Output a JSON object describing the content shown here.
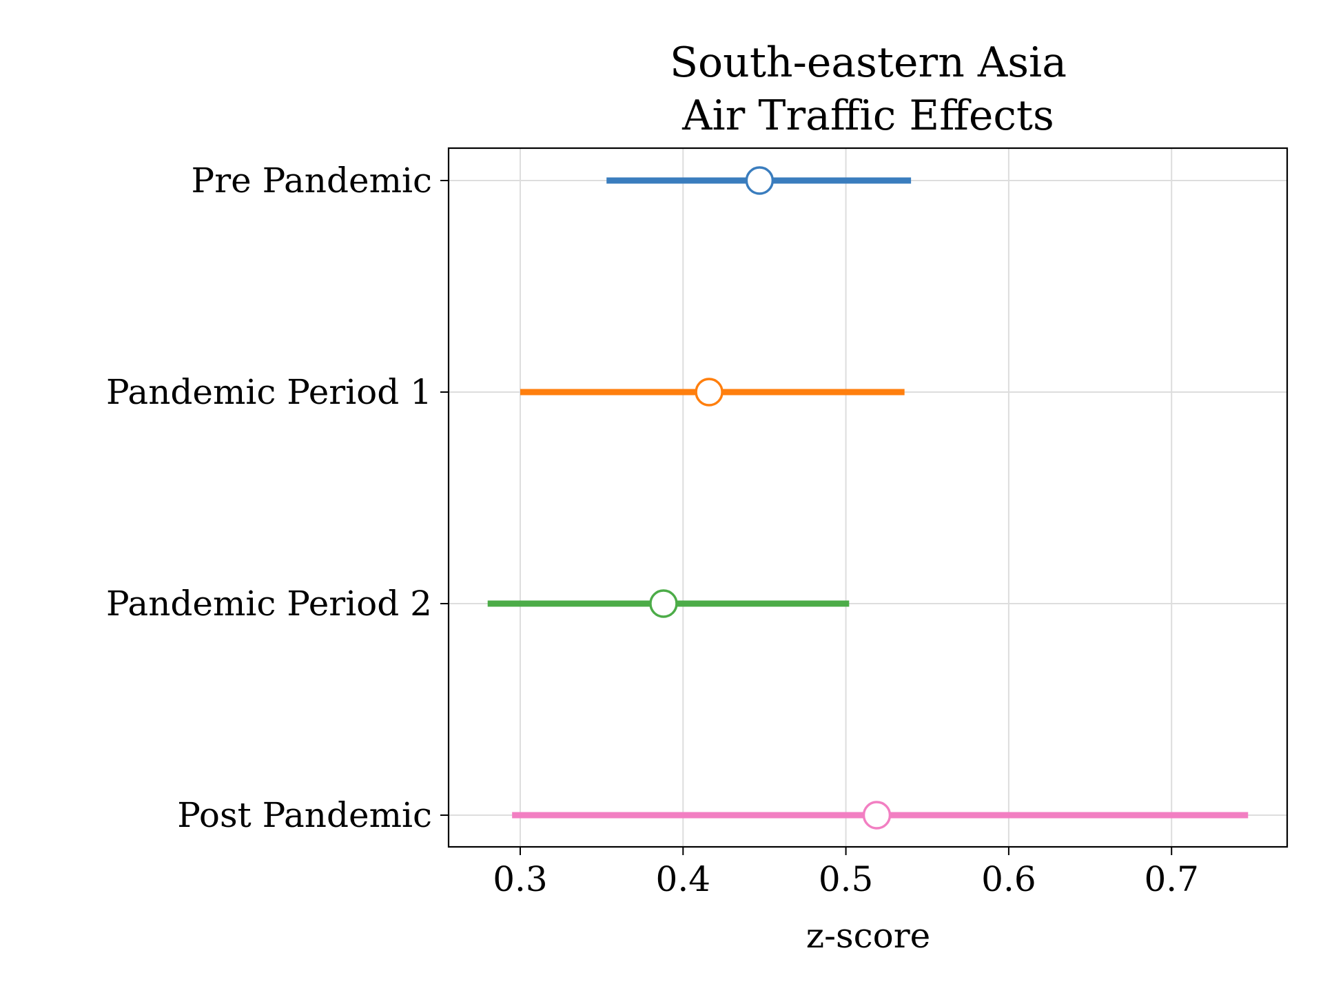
{
  "chart_data": {
    "type": "forest",
    "title": "South-eastern Asia\nAir Traffic Effects",
    "title_lines": [
      "South-eastern Asia",
      "Air Traffic Effects"
    ],
    "xlabel": "z-score",
    "ylabel": "",
    "xlim": [
      0.256,
      0.771
    ],
    "xticks": [
      0.3,
      0.4,
      0.5,
      0.6,
      0.7
    ],
    "xtick_labels": [
      "0.3",
      "0.4",
      "0.5",
      "0.6",
      "0.7"
    ],
    "grid": true,
    "legend": "none",
    "categories": [
      "Pre Pandemic",
      "Pandemic Period 1",
      "Pandemic Period 2",
      "Post Pandemic"
    ],
    "points": [
      {
        "label": "Pre Pandemic",
        "estimate": 0.447,
        "ci_low": 0.353,
        "ci_high": 0.54,
        "color": "#3a7dbe"
      },
      {
        "label": "Pandemic Period 1",
        "estimate": 0.416,
        "ci_low": 0.3,
        "ci_high": 0.536,
        "color": "#ff7f0e"
      },
      {
        "label": "Pandemic Period 2",
        "estimate": 0.388,
        "ci_low": 0.28,
        "ci_high": 0.502,
        "color": "#4cac48"
      },
      {
        "label": "Post Pandemic",
        "estimate": 0.519,
        "ci_low": 0.295,
        "ci_high": 0.747,
        "color": "#f27fc2"
      }
    ]
  }
}
